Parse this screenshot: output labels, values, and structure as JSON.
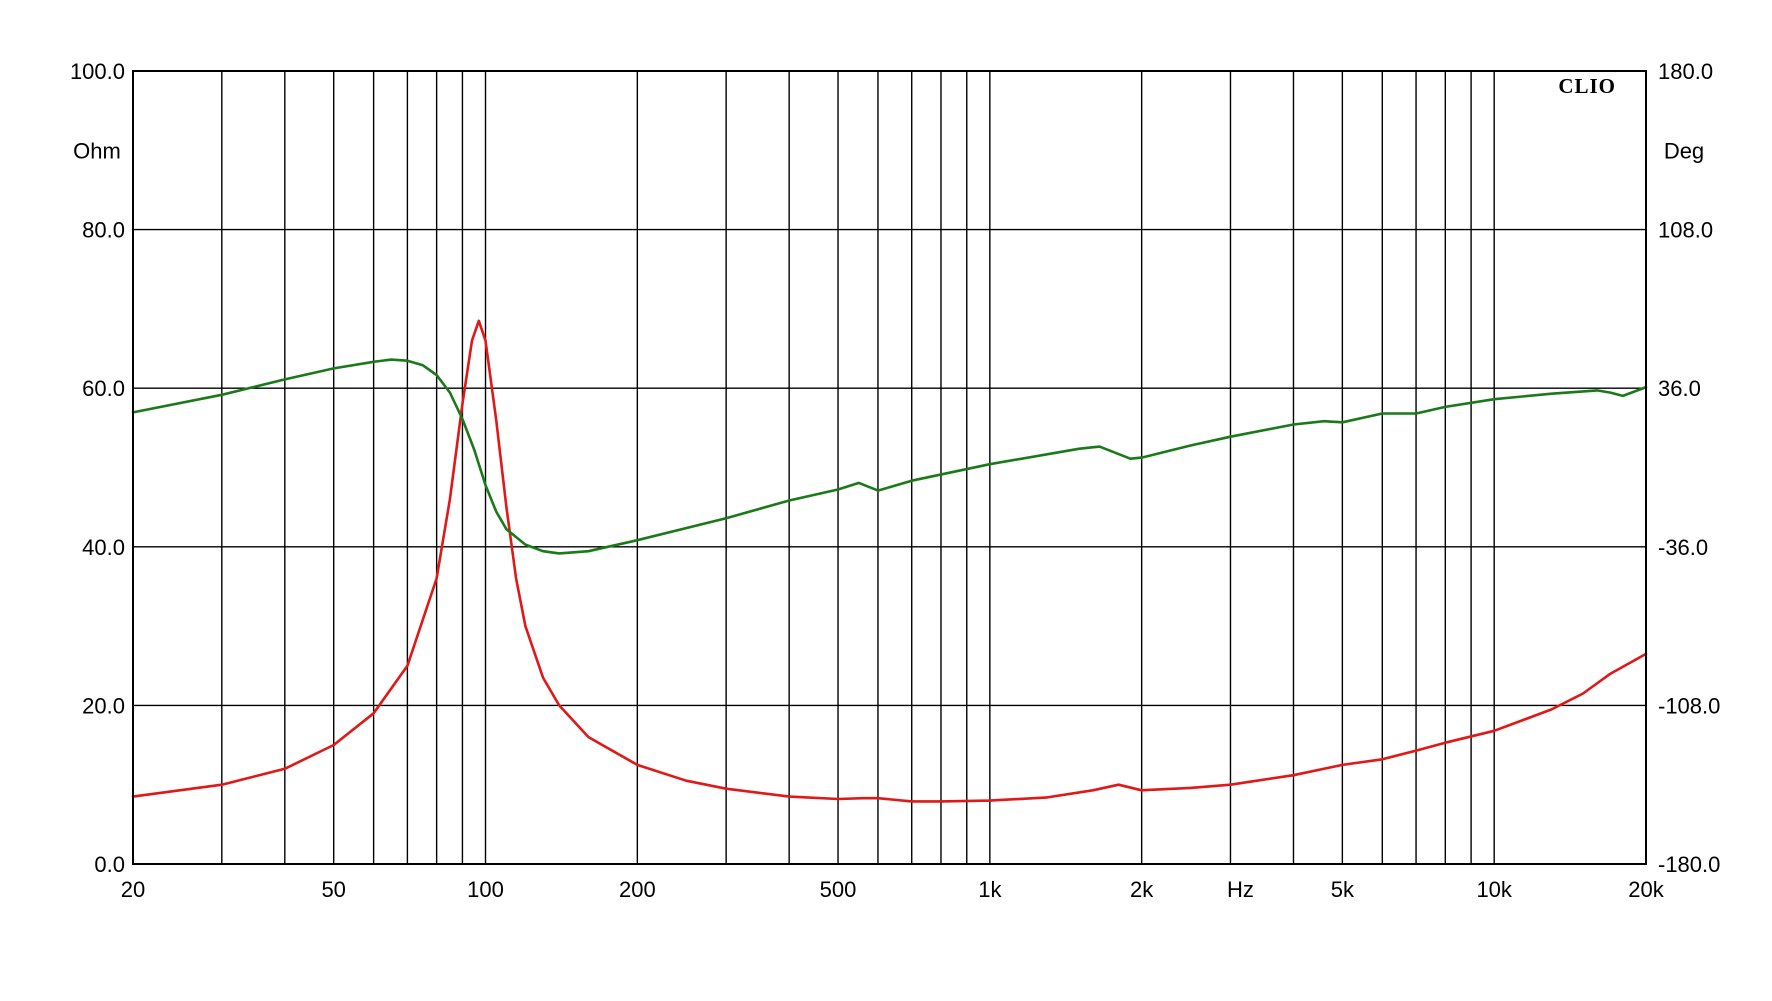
{
  "chart_data": {
    "type": "line",
    "x_scale": "log",
    "xlim": [
      20,
      20000
    ],
    "ylim_left": [
      0,
      100
    ],
    "ylim_right": [
      -180,
      180
    ],
    "grid": true,
    "brand": "CLIO",
    "left_unit": "Ohm",
    "right_unit": "Deg",
    "x_unit": "Hz",
    "x_ticks": [
      {
        "value": 20,
        "label": "20"
      },
      {
        "value": 50,
        "label": "50"
      },
      {
        "value": 100,
        "label": "100"
      },
      {
        "value": 200,
        "label": "200"
      },
      {
        "value": 500,
        "label": "500"
      },
      {
        "value": 1000,
        "label": "1k"
      },
      {
        "value": 2000,
        "label": "2k"
      },
      {
        "value": 5000,
        "label": "5k"
      },
      {
        "value": 10000,
        "label": "10k"
      },
      {
        "value": 20000,
        "label": "20k"
      }
    ],
    "x_gridlines": [
      20,
      30,
      40,
      50,
      60,
      70,
      80,
      90,
      100,
      200,
      300,
      400,
      500,
      600,
      700,
      800,
      900,
      1000,
      2000,
      3000,
      4000,
      5000,
      6000,
      7000,
      8000,
      9000,
      10000,
      20000
    ],
    "y_left_ticks": [
      {
        "value": 0,
        "label": "0.0"
      },
      {
        "value": 20,
        "label": "20.0"
      },
      {
        "value": 40,
        "label": "40.0"
      },
      {
        "value": 60,
        "label": "60.0"
      },
      {
        "value": 80,
        "label": "80.0"
      },
      {
        "value": 100,
        "label": "100.0"
      }
    ],
    "y_right_ticks": [
      {
        "value": -180,
        "label": "-180.0"
      },
      {
        "value": -108,
        "label": "-108.0"
      },
      {
        "value": -36,
        "label": "-36.0"
      },
      {
        "value": 36,
        "label": "36.0"
      },
      {
        "value": 108,
        "label": "108.0"
      },
      {
        "value": 180,
        "label": "180.0"
      }
    ],
    "series": [
      {
        "axis": "left",
        "color": "#e01818",
        "points": [
          [
            20,
            8.5
          ],
          [
            30,
            10.0
          ],
          [
            40,
            12.0
          ],
          [
            50,
            15.0
          ],
          [
            60,
            19.0
          ],
          [
            70,
            25.0
          ],
          [
            80,
            36.0
          ],
          [
            85,
            46.0
          ],
          [
            90,
            58.0
          ],
          [
            94,
            66.0
          ],
          [
            97,
            68.5
          ],
          [
            100,
            66.0
          ],
          [
            105,
            56.0
          ],
          [
            110,
            45.0
          ],
          [
            115,
            36.0
          ],
          [
            120,
            30.0
          ],
          [
            130,
            23.5
          ],
          [
            140,
            20.0
          ],
          [
            160,
            16.0
          ],
          [
            200,
            12.5
          ],
          [
            250,
            10.5
          ],
          [
            300,
            9.5
          ],
          [
            400,
            8.5
          ],
          [
            500,
            8.2
          ],
          [
            560,
            8.3
          ],
          [
            600,
            8.3
          ],
          [
            700,
            7.9
          ],
          [
            800,
            7.9
          ],
          [
            1000,
            8.0
          ],
          [
            1300,
            8.4
          ],
          [
            1600,
            9.3
          ],
          [
            1800,
            10.0
          ],
          [
            2000,
            9.3
          ],
          [
            2500,
            9.6
          ],
          [
            3000,
            10.0
          ],
          [
            4000,
            11.2
          ],
          [
            5000,
            12.5
          ],
          [
            6000,
            13.2
          ],
          [
            7000,
            14.3
          ],
          [
            8000,
            15.3
          ],
          [
            10000,
            16.8
          ],
          [
            13000,
            19.5
          ],
          [
            15000,
            21.5
          ],
          [
            17000,
            24.0
          ],
          [
            20000,
            26.5
          ]
        ]
      },
      {
        "axis": "right",
        "color": "#1a7a1a",
        "points": [
          [
            20,
            25.0
          ],
          [
            30,
            33.0
          ],
          [
            40,
            40.0
          ],
          [
            50,
            45.0
          ],
          [
            60,
            48.0
          ],
          [
            65,
            49.0
          ],
          [
            70,
            48.5
          ],
          [
            75,
            46.5
          ],
          [
            80,
            42.0
          ],
          [
            85,
            34.0
          ],
          [
            90,
            22.0
          ],
          [
            95,
            8.0
          ],
          [
            100,
            -8.0
          ],
          [
            105,
            -20.0
          ],
          [
            110,
            -28.0
          ],
          [
            120,
            -35.0
          ],
          [
            130,
            -38.0
          ],
          [
            140,
            -39.0
          ],
          [
            160,
            -38.0
          ],
          [
            200,
            -33.0
          ],
          [
            300,
            -23.0
          ],
          [
            400,
            -15.0
          ],
          [
            500,
            -10.0
          ],
          [
            550,
            -7.0
          ],
          [
            600,
            -10.5
          ],
          [
            700,
            -6.0
          ],
          [
            1000,
            1.5
          ],
          [
            1500,
            8.5
          ],
          [
            1650,
            9.5
          ],
          [
            1900,
            4.0
          ],
          [
            2000,
            4.5
          ],
          [
            2500,
            10.0
          ],
          [
            3000,
            14.0
          ],
          [
            4000,
            19.5
          ],
          [
            4600,
            21.0
          ],
          [
            5000,
            20.5
          ],
          [
            6000,
            24.5
          ],
          [
            7000,
            24.5
          ],
          [
            8000,
            27.5
          ],
          [
            10000,
            31.0
          ],
          [
            13000,
            33.5
          ],
          [
            16000,
            35.0
          ],
          [
            17000,
            34.0
          ],
          [
            18000,
            32.5
          ],
          [
            20000,
            36.5
          ]
        ]
      }
    ]
  }
}
